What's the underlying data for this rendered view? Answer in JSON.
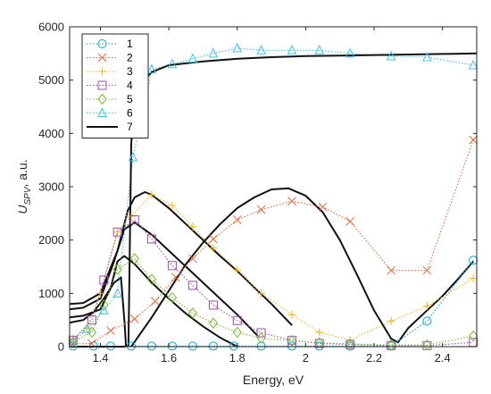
{
  "chart_data": {
    "type": "line",
    "xlabel": "Energy, eV",
    "ylabel": {
      "main": "U",
      "sub": "SPV",
      "suffix": ", a.u."
    },
    "xlim": [
      1.31,
      2.5
    ],
    "ylim": [
      0,
      6000
    ],
    "xticks": [
      1.4,
      1.6,
      1.8,
      2,
      2.2,
      2.4
    ],
    "xtick_labels": [
      "1.4",
      "1.6",
      "1.8",
      "2",
      "2.2",
      "2.4"
    ],
    "yticks": [
      0,
      1000,
      2000,
      3000,
      4000,
      5000,
      6000
    ],
    "ytick_labels": [
      "0",
      "1000",
      "2000",
      "3000",
      "4000",
      "5000",
      "6000"
    ],
    "grid": false,
    "legend_position": "top-left",
    "series": [
      {
        "name": "1",
        "color": "#0aa0d6",
        "marker": "circle",
        "style": "dotted",
        "x": [
          1.32,
          1.38,
          1.43,
          1.49,
          1.55,
          1.61,
          1.67,
          1.73,
          1.79,
          1.87,
          1.96,
          2.04,
          2.13,
          2.25,
          2.355,
          2.49
        ],
        "y": [
          10,
          10,
          10,
          10,
          10,
          10,
          10,
          10,
          10,
          10,
          10,
          10,
          10,
          10,
          480,
          1620
        ]
      },
      {
        "name": "2",
        "color": "#e8663a",
        "marker": "x",
        "style": "dotted",
        "x": [
          1.32,
          1.375,
          1.43,
          1.5,
          1.56,
          1.62,
          1.67,
          1.73,
          1.8,
          1.87,
          1.96,
          2.05,
          2.13,
          2.25,
          2.355,
          2.49
        ],
        "y": [
          50,
          60,
          300,
          520,
          850,
          1300,
          1650,
          2020,
          2380,
          2570,
          2730,
          2620,
          2350,
          1430,
          1430,
          3880
        ]
      },
      {
        "name": "3",
        "color": "#f0b41c",
        "marker": "plus",
        "style": "dotted",
        "x": [
          1.32,
          1.36,
          1.4,
          1.45,
          1.49,
          1.55,
          1.61,
          1.67,
          1.73,
          1.8,
          1.87,
          1.96,
          2.04,
          2.13,
          2.25,
          2.355,
          2.49
        ],
        "y": [
          150,
          350,
          1000,
          2150,
          2450,
          2850,
          2650,
          2250,
          1850,
          1440,
          1000,
          600,
          270,
          120,
          480,
          760,
          1280
        ]
      },
      {
        "name": "4",
        "color": "#a04cb4",
        "marker": "square",
        "style": "dotted",
        "x": [
          1.32,
          1.375,
          1.41,
          1.45,
          1.5,
          1.55,
          1.61,
          1.67,
          1.73,
          1.8,
          1.87,
          1.96,
          2.04,
          2.13,
          2.25,
          2.355,
          2.49
        ],
        "y": [
          120,
          500,
          1250,
          2150,
          2380,
          2020,
          1520,
          1150,
          780,
          490,
          260,
          120,
          60,
          40,
          20,
          20,
          80
        ]
      },
      {
        "name": "5",
        "color": "#7ab82e",
        "marker": "diamond",
        "style": "dotted",
        "x": [
          1.32,
          1.375,
          1.41,
          1.45,
          1.5,
          1.55,
          1.61,
          1.67,
          1.73,
          1.8,
          1.87,
          1.96,
          2.04,
          2.13,
          2.25,
          2.355,
          2.49
        ],
        "y": [
          90,
          270,
          780,
          1450,
          1650,
          1260,
          920,
          630,
          440,
          270,
          160,
          110,
          70,
          50,
          30,
          30,
          200
        ]
      },
      {
        "name": "6",
        "color": "#3fc0e4",
        "marker": "triangle",
        "style": "dotted",
        "x": [
          1.32,
          1.36,
          1.41,
          1.45,
          1.495,
          1.55,
          1.61,
          1.67,
          1.73,
          1.8,
          1.87,
          1.96,
          2.04,
          2.13,
          2.25,
          2.355,
          2.49
        ],
        "y": [
          80,
          330,
          680,
          1000,
          3550,
          5200,
          5300,
          5400,
          5500,
          5600,
          5560,
          5560,
          5560,
          5500,
          5450,
          5430,
          5280
        ]
      },
      {
        "name": "7",
        "color": "#111111",
        "marker": "none",
        "style": "solid",
        "x": [
          1.31,
          1.36,
          1.4,
          1.44,
          1.465,
          1.475,
          1.478,
          1.482,
          1.49,
          1.5,
          1.52,
          1.55,
          1.6,
          1.7,
          1.8,
          1.9,
          2.0,
          2.1,
          2.2,
          2.3,
          2.4,
          2.5
        ],
        "y": [
          0,
          0,
          0,
          0,
          0,
          5,
          10,
          30,
          3800,
          4650,
          4950,
          5150,
          5280,
          5350,
          5400,
          5430,
          5450,
          5460,
          5470,
          5480,
          5490,
          5500
        ]
      }
    ],
    "model_curves": [
      {
        "color": "#111111",
        "x": [
          1.31,
          1.35,
          1.4,
          1.45,
          1.48,
          1.5,
          1.53,
          1.55,
          1.6,
          1.65,
          1.7,
          1.75,
          1.8,
          1.9,
          1.96
        ],
        "y": [
          800,
          820,
          1000,
          1800,
          2550,
          2800,
          2900,
          2850,
          2600,
          2300,
          2000,
          1700,
          1420,
          800,
          400
        ]
      },
      {
        "color": "#111111",
        "x": [
          1.31,
          1.35,
          1.4,
          1.44,
          1.47,
          1.5,
          1.55,
          1.6,
          1.65,
          1.7,
          1.75,
          1.8,
          1.86
        ],
        "y": [
          700,
          730,
          900,
          1600,
          2200,
          2330,
          2100,
          1800,
          1500,
          1200,
          900,
          600,
          200
        ]
      },
      {
        "color": "#111111",
        "x": [
          1.31,
          1.35,
          1.4,
          1.43,
          1.45,
          1.47,
          1.5,
          1.55,
          1.6,
          1.65,
          1.7,
          1.75,
          1.8
        ],
        "y": [
          550,
          580,
          700,
          1100,
          1600,
          1700,
          1550,
          1200,
          900,
          620,
          380,
          170,
          0
        ]
      },
      {
        "color": "#111111",
        "x": [
          1.31,
          1.35,
          1.38,
          1.41,
          1.44,
          1.46,
          1.47,
          1.475
        ],
        "y": [
          450,
          500,
          650,
          900,
          1200,
          1300,
          500,
          0
        ]
      },
      {
        "color": "#111111",
        "x": [
          1.49,
          1.55,
          1.6,
          1.65,
          1.7,
          1.75,
          1.8,
          1.85,
          1.9,
          1.95,
          2.0,
          2.05,
          2.1,
          2.15,
          2.2,
          2.25,
          2.27,
          2.3,
          2.35,
          2.4,
          2.45,
          2.49
        ],
        "y": [
          0,
          550,
          1050,
          1550,
          1950,
          2300,
          2600,
          2800,
          2950,
          2970,
          2830,
          2520,
          2000,
          1350,
          680,
          150,
          80,
          350,
          650,
          950,
          1300,
          1600
        ]
      }
    ]
  }
}
